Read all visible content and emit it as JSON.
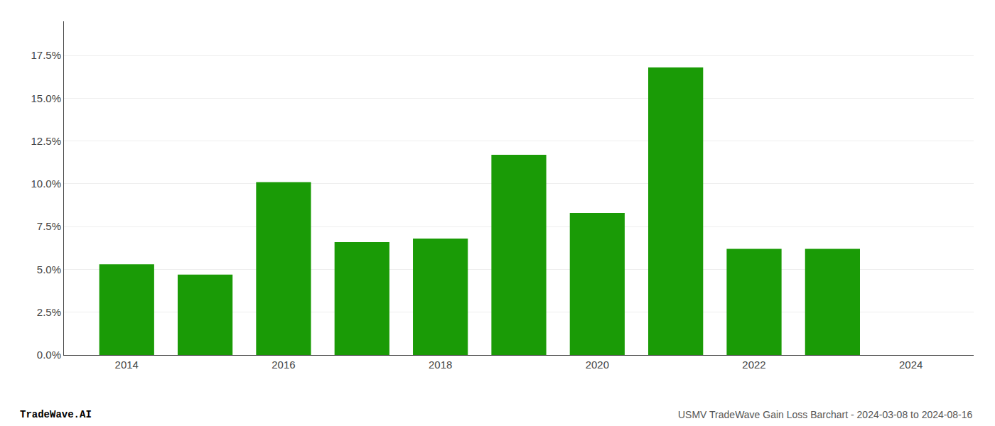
{
  "chart_data": {
    "type": "bar",
    "x": [
      2014,
      2015,
      2016,
      2017,
      2018,
      2019,
      2020,
      2021,
      2022,
      2023,
      2024
    ],
    "values": [
      0.053,
      0.047,
      0.101,
      0.066,
      0.068,
      0.117,
      0.083,
      0.168,
      0.062,
      0.062,
      null
    ],
    "color": "#1a9b06",
    "xlim": [
      2013.2,
      2024.8
    ],
    "xticks": [
      2014,
      2016,
      2018,
      2020,
      2022,
      2024
    ],
    "ylim": [
      0,
      0.195
    ],
    "yticks": [
      {
        "value": 0.0,
        "label": "0.0%"
      },
      {
        "value": 0.025,
        "label": "2.5%"
      },
      {
        "value": 0.05,
        "label": "5.0%"
      },
      {
        "value": 0.075,
        "label": "7.5%"
      },
      {
        "value": 0.1,
        "label": "10.0%"
      },
      {
        "value": 0.125,
        "label": "12.5%"
      },
      {
        "value": 0.15,
        "label": "15.0%"
      },
      {
        "value": 0.175,
        "label": "17.5%"
      }
    ],
    "grid": true,
    "annotations": [
      "TradeWave.AI",
      "USMV TradeWave Gain Loss Barchart - 2024-03-08 to 2024-08-16"
    ]
  }
}
